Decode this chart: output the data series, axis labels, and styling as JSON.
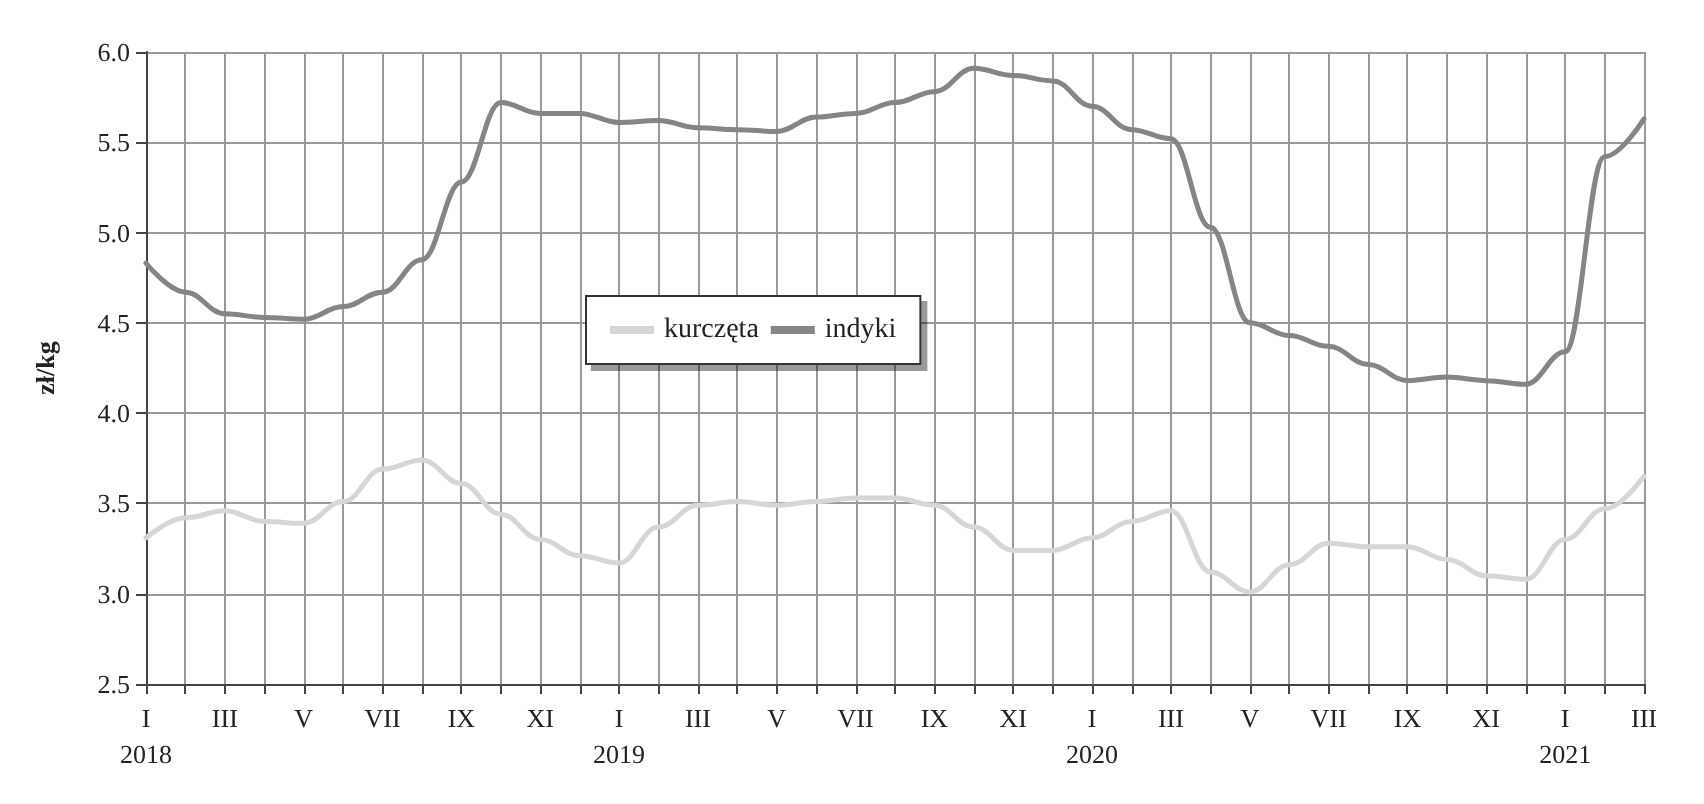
{
  "chart_data": {
    "type": "line",
    "ylabel": "zł/kg",
    "categories": [
      "I\n2018",
      null,
      "III",
      null,
      "V",
      null,
      "VII",
      null,
      "IX",
      null,
      "XI",
      null,
      "I\n2019",
      null,
      "III",
      null,
      "V",
      null,
      "VII",
      null,
      "IX",
      null,
      "XI",
      null,
      "I\n2020",
      null,
      "III",
      null,
      "V",
      null,
      "VII",
      null,
      "IX",
      null,
      "XI",
      null,
      "I\n2021",
      null,
      "III"
    ],
    "series": [
      {
        "name": "kurczęta",
        "color": "#d6d6d6",
        "values": [
          3.31,
          3.42,
          3.46,
          3.4,
          3.39,
          3.51,
          3.69,
          3.74,
          3.61,
          3.44,
          3.3,
          3.21,
          3.17,
          3.37,
          3.49,
          3.51,
          3.49,
          3.51,
          3.53,
          3.53,
          3.49,
          3.37,
          3.24,
          3.24,
          3.31,
          3.4,
          3.46,
          3.12,
          3.01,
          3.16,
          3.28,
          3.26,
          3.26,
          3.19,
          3.1,
          3.08,
          3.3,
          3.47,
          3.65
        ]
      },
      {
        "name": "indyki",
        "color": "#858585",
        "values": [
          4.83,
          4.67,
          4.55,
          4.53,
          4.52,
          4.59,
          4.67,
          4.85,
          5.28,
          5.72,
          5.66,
          5.66,
          5.61,
          5.62,
          5.58,
          5.57,
          5.56,
          5.64,
          5.66,
          5.72,
          5.78,
          5.91,
          5.87,
          5.84,
          5.7,
          5.57,
          5.52,
          5.03,
          4.5,
          4.43,
          4.37,
          4.27,
          4.18,
          4.2,
          4.18,
          4.16,
          4.34,
          5.42,
          5.63
        ]
      }
    ],
    "ylim": [
      2.5,
      6.0
    ],
    "yticks": [
      2.5,
      {
        "value": 3,
        "label": "3.0"
      },
      3.5,
      {
        "value": 4,
        "label": "4.0"
      },
      4.5,
      {
        "value": 5,
        "label": "5.0"
      },
      5.5,
      {
        "value": 6,
        "label": "6.0"
      }
    ],
    "grid": true,
    "legend": "center",
    "marker": "none",
    "line_style": "solid"
  }
}
